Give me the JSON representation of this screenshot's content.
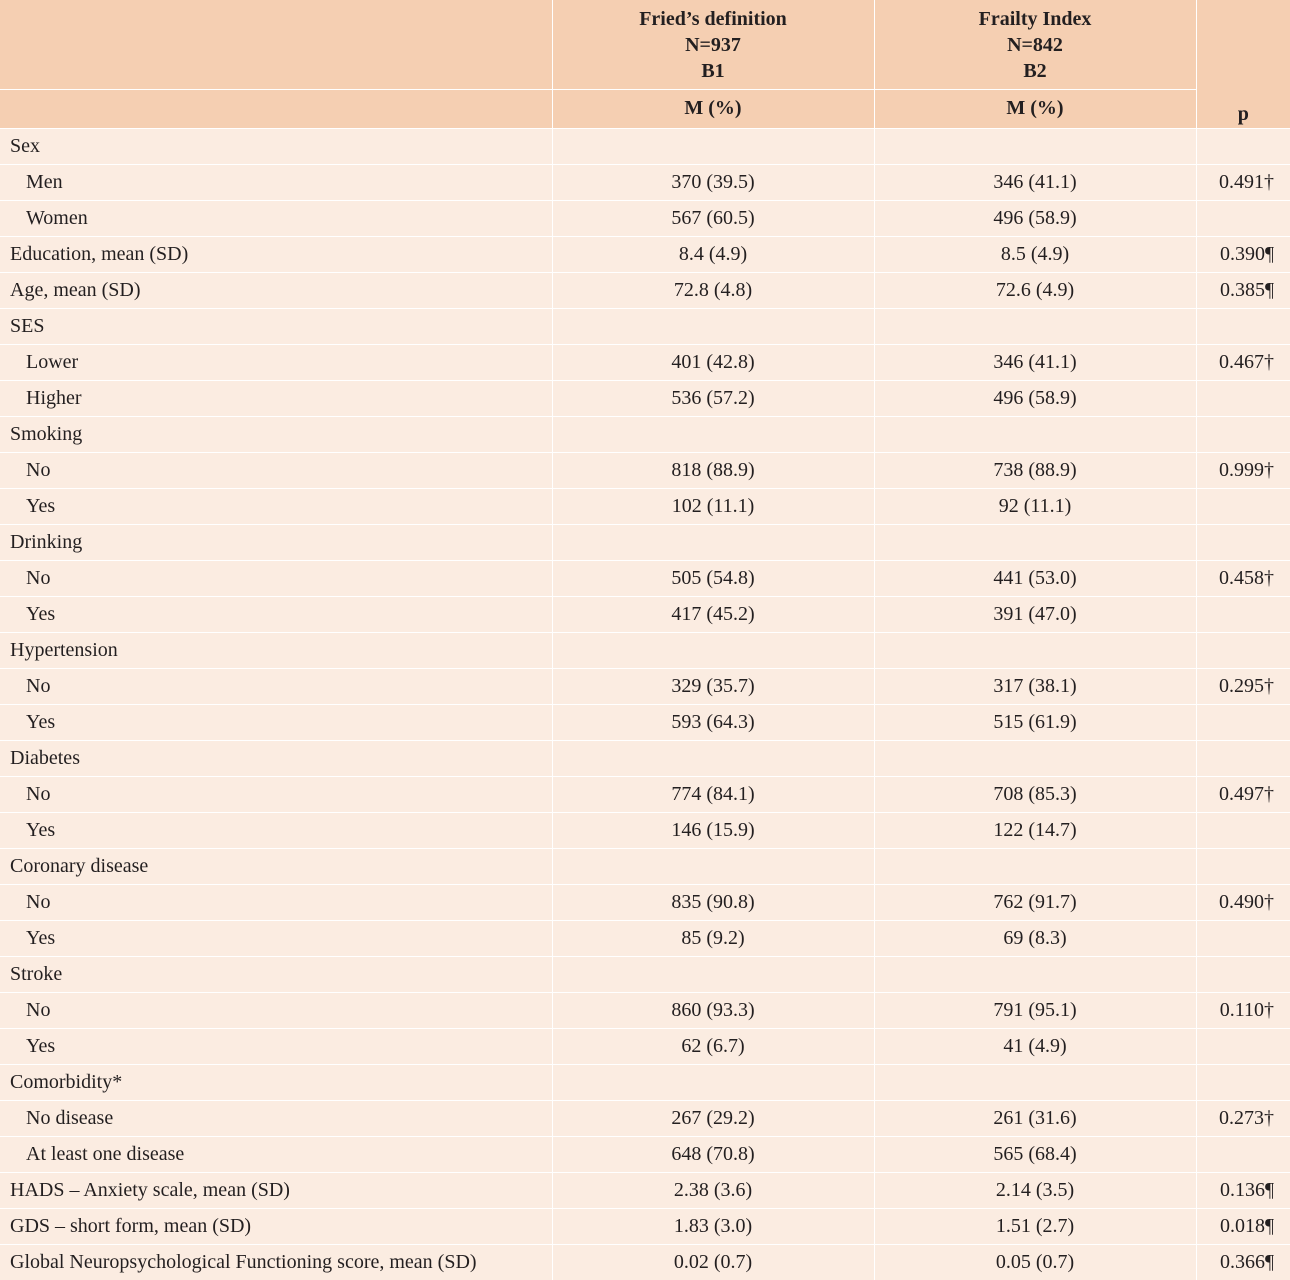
{
  "header": {
    "b1": {
      "line1": "Fried’s definition",
      "line2": "N=937",
      "line3": "B1",
      "measure": "M (%)"
    },
    "b2": {
      "line1": "Frailty Index",
      "line2": "N=842",
      "line3": "B2",
      "measure": "M (%)"
    },
    "p": "p"
  },
  "rows": [
    {
      "label": "Sex",
      "indent": false,
      "b1": "",
      "b2": "",
      "p": ""
    },
    {
      "label": "Men",
      "indent": true,
      "b1": "370 (39.5)",
      "b2": "346 (41.1)",
      "p": "0.491†"
    },
    {
      "label": "Women",
      "indent": true,
      "b1": "567 (60.5)",
      "b2": "496 (58.9)",
      "p": ""
    },
    {
      "label": "Education, mean (SD)",
      "indent": false,
      "b1": "8.4 (4.9)",
      "b2": "8.5 (4.9)",
      "p": "0.390¶"
    },
    {
      "label": "Age, mean (SD)",
      "indent": false,
      "b1": "72.8 (4.8)",
      "b2": "72.6 (4.9)",
      "p": "0.385¶"
    },
    {
      "label": "SES",
      "indent": false,
      "b1": "",
      "b2": "",
      "p": ""
    },
    {
      "label": "Lower",
      "indent": true,
      "b1": "401 (42.8)",
      "b2": "346 (41.1)",
      "p": "0.467†"
    },
    {
      "label": "Higher",
      "indent": true,
      "b1": "536 (57.2)",
      "b2": "496 (58.9)",
      "p": ""
    },
    {
      "label": "Smoking",
      "indent": false,
      "b1": "",
      "b2": "",
      "p": ""
    },
    {
      "label": "No",
      "indent": true,
      "b1": "818 (88.9)",
      "b2": "738 (88.9)",
      "p": "0.999†"
    },
    {
      "label": "Yes",
      "indent": true,
      "b1": "102 (11.1)",
      "b2": "92 (11.1)",
      "p": ""
    },
    {
      "label": "Drinking",
      "indent": false,
      "b1": "",
      "b2": "",
      "p": ""
    },
    {
      "label": "No",
      "indent": true,
      "b1": "505 (54.8)",
      "b2": "441 (53.0)",
      "p": "0.458†"
    },
    {
      "label": "Yes",
      "indent": true,
      "b1": "417 (45.2)",
      "b2": "391 (47.0)",
      "p": ""
    },
    {
      "label": "Hypertension",
      "indent": false,
      "b1": "",
      "b2": "",
      "p": ""
    },
    {
      "label": "No",
      "indent": true,
      "b1": "329 (35.7)",
      "b2": "317 (38.1)",
      "p": "0.295†"
    },
    {
      "label": "Yes",
      "indent": true,
      "b1": "593 (64.3)",
      "b2": "515 (61.9)",
      "p": ""
    },
    {
      "label": "Diabetes",
      "indent": false,
      "b1": "",
      "b2": "",
      "p": ""
    },
    {
      "label": "No",
      "indent": true,
      "b1": "774 (84.1)",
      "b2": "708 (85.3)",
      "p": "0.497†"
    },
    {
      "label": "Yes",
      "indent": true,
      "b1": "146 (15.9)",
      "b2": "122 (14.7)",
      "p": ""
    },
    {
      "label": "Coronary disease",
      "indent": false,
      "b1": "",
      "b2": "",
      "p": ""
    },
    {
      "label": "No",
      "indent": true,
      "b1": "835 (90.8)",
      "b2": "762 (91.7)",
      "p": "0.490†"
    },
    {
      "label": "Yes",
      "indent": true,
      "b1": "85 (9.2)",
      "b2": "69 (8.3)",
      "p": ""
    },
    {
      "label": "Stroke",
      "indent": false,
      "b1": "",
      "b2": "",
      "p": ""
    },
    {
      "label": "No",
      "indent": true,
      "b1": "860 (93.3)",
      "b2": "791 (95.1)",
      "p": "0.110†"
    },
    {
      "label": "Yes",
      "indent": true,
      "b1": "62 (6.7)",
      "b2": "41 (4.9)",
      "p": ""
    },
    {
      "label": "Comorbidity*",
      "indent": false,
      "b1": "",
      "b2": "",
      "p": ""
    },
    {
      "label": "No disease",
      "indent": true,
      "b1": "267 (29.2)",
      "b2": "261 (31.6)",
      "p": "0.273†"
    },
    {
      "label": "At least one disease",
      "indent": true,
      "b1": "648 (70.8)",
      "b2": "565 (68.4)",
      "p": ""
    },
    {
      "label": "HADS – Anxiety scale, mean (SD)",
      "indent": false,
      "b1": "2.38 (3.6)",
      "b2": "2.14 (3.5)",
      "p": "0.136¶"
    },
    {
      "label": "GDS – short form, mean (SD)",
      "indent": false,
      "b1": "1.83 (3.0)",
      "b2": "1.51 (2.7)",
      "p": "0.018¶"
    },
    {
      "label": "Global Neuropsychological Functioning score, mean (SD)",
      "indent": false,
      "b1": "0.02 (0.7)",
      "b2": "0.05 (0.7)",
      "p": "0.366¶"
    }
  ]
}
